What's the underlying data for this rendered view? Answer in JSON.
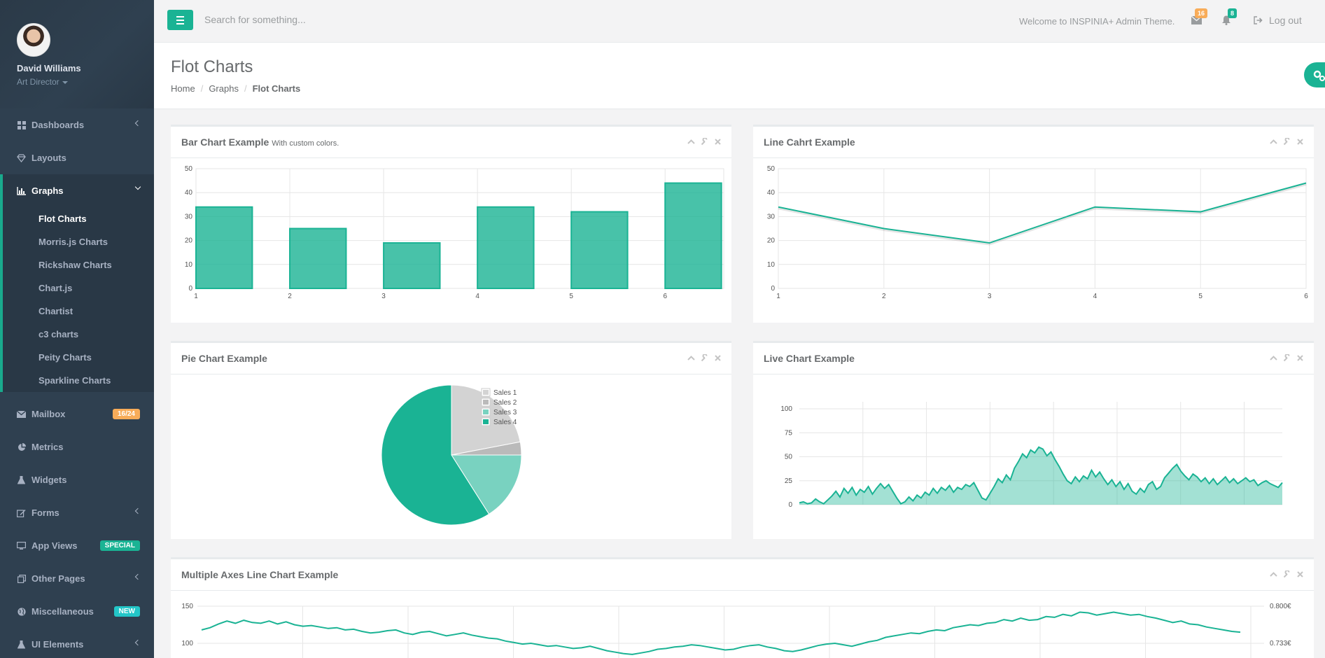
{
  "profile": {
    "name": "David Williams",
    "role": "Art Director"
  },
  "nav": [
    {
      "label": "Dashboards",
      "icon": "th-large-icon",
      "chevron": true
    },
    {
      "label": "Layouts",
      "icon": "diamond-icon",
      "chevron": false
    }
  ],
  "graphs": {
    "label": "Graphs",
    "icon": "bar-chart-icon",
    "items": [
      "Flot Charts",
      "Morris.js Charts",
      "Rickshaw Charts",
      "Chart.js",
      "Chartist",
      "c3 charts",
      "Peity Charts",
      "Sparkline Charts"
    ]
  },
  "nav2": [
    {
      "label": "Mailbox",
      "icon": "envelope-icon",
      "badge": "16/24",
      "badge_type": "warn"
    },
    {
      "label": "Metrics",
      "icon": "pie-chart-icon"
    },
    {
      "label": "Widgets",
      "icon": "flask-icon"
    },
    {
      "label": "Forms",
      "icon": "edit-icon",
      "chevron": true
    },
    {
      "label": "App Views",
      "icon": "desktop-icon",
      "badge": "SPECIAL",
      "badge_type": "prim"
    },
    {
      "label": "Other Pages",
      "icon": "files-icon",
      "chevron": true
    },
    {
      "label": "Miscellaneous",
      "icon": "globe-icon",
      "badge": "NEW",
      "badge_type": "info"
    },
    {
      "label": "UI Elements",
      "icon": "flask-icon",
      "chevron": true
    }
  ],
  "topbar": {
    "search_placeholder": "Search for something...",
    "welcome": "Welcome to INSPINIA+ Admin Theme.",
    "mail_count": "16",
    "bell_count": "8",
    "logout": "Log out"
  },
  "heading": {
    "title": "Flot Charts",
    "breadcrumb": [
      "Home",
      "Graphs",
      "Flot Charts"
    ]
  },
  "panels": {
    "bar": {
      "title": "Bar Chart Example",
      "subtitle": "With custom colors."
    },
    "line": {
      "title": "Line Cahrt Example"
    },
    "pie": {
      "title": "Pie Chart Example"
    },
    "live": {
      "title": "Live Chart Example"
    },
    "multi": {
      "title": "Multiple Axes Line Chart Example"
    }
  },
  "colors": {
    "accent": "#1ab394",
    "sidebar": "#2f4050"
  },
  "chart_data": [
    {
      "type": "bar",
      "x": [
        1,
        2,
        3,
        4,
        5,
        6
      ],
      "values": [
        34,
        25,
        19,
        34,
        32,
        44
      ],
      "xticks": [
        "1",
        "2",
        "3",
        "4",
        "5",
        "6"
      ],
      "yticks": [
        "0",
        "10",
        "20",
        "30",
        "40",
        "50"
      ],
      "ylim": [
        0,
        50
      ]
    },
    {
      "type": "line",
      "x": [
        1,
        2,
        3,
        4,
        5,
        6
      ],
      "values": [
        34,
        25,
        19,
        34,
        32,
        44
      ],
      "xticks": [
        "1",
        "2",
        "3",
        "4",
        "5",
        "6"
      ],
      "yticks": [
        "0",
        "10",
        "20",
        "30",
        "40",
        "50"
      ],
      "ylim": [
        0,
        50
      ]
    },
    {
      "type": "pie",
      "series": [
        {
          "name": "Sales 1",
          "value": 22,
          "color": "#d3d3d3"
        },
        {
          "name": "Sales 2",
          "value": 3,
          "color": "#bababa"
        },
        {
          "name": "Sales 3",
          "value": 16,
          "color": "#79d2c0"
        },
        {
          "name": "Sales 4",
          "value": 59,
          "color": "#1ab394"
        }
      ]
    },
    {
      "type": "area",
      "yticks": [
        "0",
        "25",
        "50",
        "75",
        "100"
      ],
      "ylim": [
        0,
        100
      ],
      "values": [
        2,
        3,
        1,
        2,
        6,
        3,
        1,
        5,
        9,
        14,
        8,
        17,
        12,
        18,
        10,
        16,
        13,
        19,
        11,
        17,
        22,
        17,
        21,
        14,
        7,
        1,
        3,
        8,
        4,
        10,
        7,
        13,
        10,
        17,
        12,
        18,
        15,
        20,
        13,
        18,
        16,
        21,
        19,
        23,
        15,
        7,
        5,
        12,
        19,
        27,
        23,
        31,
        26,
        38,
        45,
        53,
        49,
        57,
        54,
        60,
        58,
        51,
        55,
        47,
        40,
        32,
        25,
        22,
        29,
        24,
        30,
        27,
        36,
        29,
        34,
        27,
        21,
        26,
        19,
        24,
        16,
        22,
        14,
        11,
        17,
        13,
        21,
        24,
        16,
        19,
        28,
        33,
        38,
        42,
        35,
        30,
        26,
        32,
        29,
        24,
        28,
        22,
        27,
        21,
        25,
        29,
        23,
        27,
        22,
        25,
        28,
        24,
        26,
        20,
        23,
        25,
        22,
        20,
        18,
        23
      ]
    },
    {
      "type": "line",
      "yticks_left": [
        "100",
        "150"
      ],
      "yticks_right": [
        "0.733€",
        "0.800€"
      ],
      "values": [
        118,
        121,
        126,
        130,
        127,
        131,
        128,
        127,
        130,
        126,
        129,
        125,
        123,
        124,
        122,
        120,
        121,
        118,
        119,
        116,
        114,
        115,
        117,
        118,
        114,
        112,
        115,
        116,
        113,
        110,
        112,
        114,
        111,
        109,
        107,
        106,
        103,
        101,
        99,
        100,
        98,
        96,
        97,
        95,
        93,
        94,
        96,
        93,
        90,
        88,
        86,
        85,
        87,
        89,
        92,
        93,
        95,
        96,
        98,
        97,
        95,
        93,
        91,
        92,
        95,
        97,
        98,
        95,
        93,
        90,
        89,
        91,
        94,
        97,
        99,
        100,
        98,
        96,
        99,
        102,
        104,
        108,
        110,
        112,
        114,
        113,
        116,
        118,
        117,
        121,
        123,
        125,
        124,
        127,
        128,
        132,
        130,
        134,
        131,
        132,
        136,
        135,
        139,
        137,
        142,
        141,
        138,
        140,
        142,
        140,
        138,
        139,
        136,
        134,
        131,
        128,
        130,
        126,
        125,
        122,
        120,
        118,
        116,
        115
      ]
    }
  ]
}
